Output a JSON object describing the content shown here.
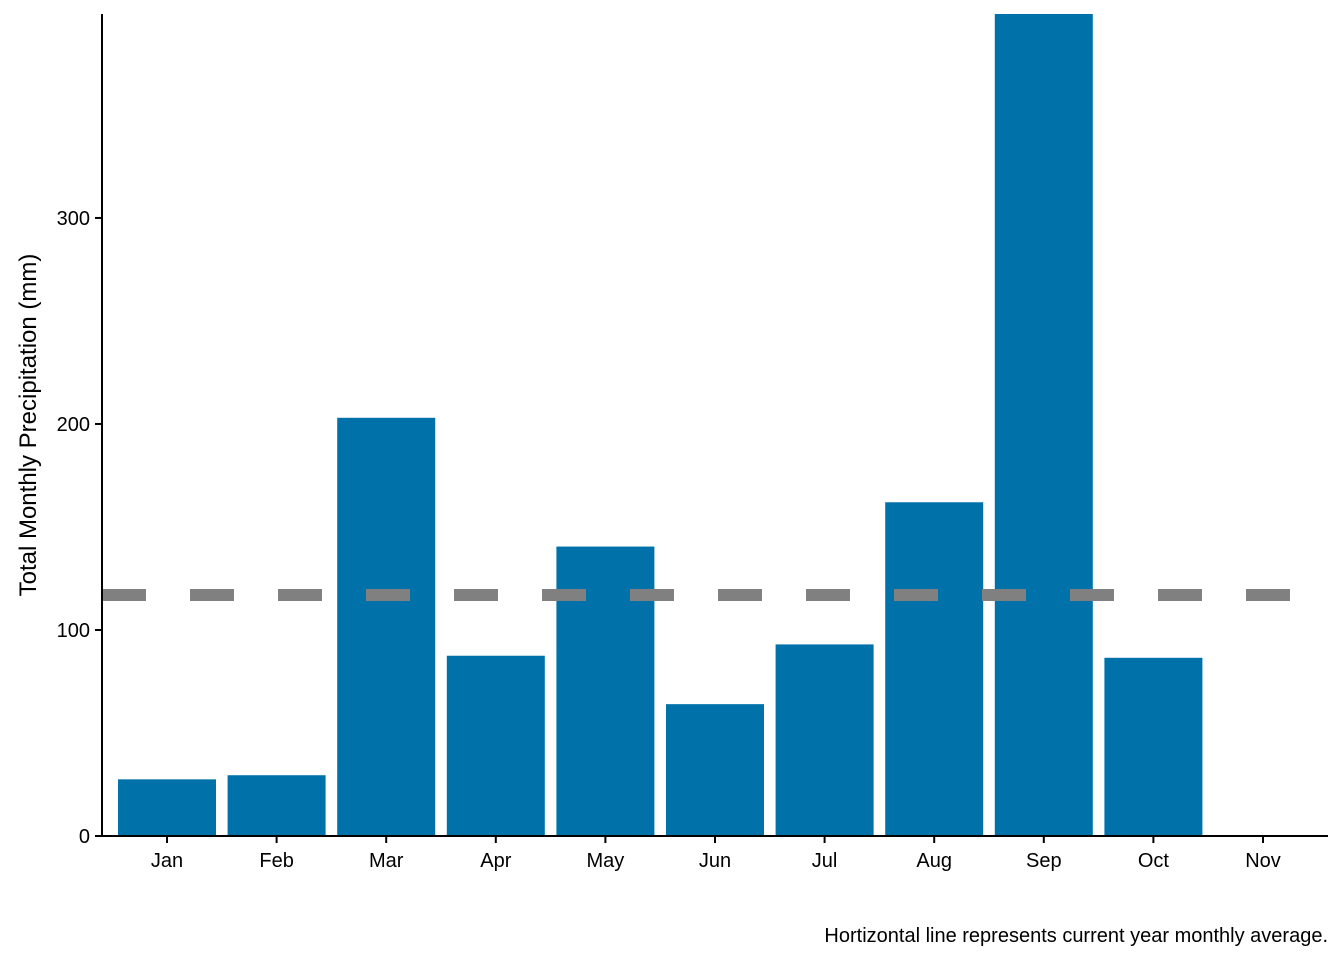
{
  "chart_data": {
    "type": "bar",
    "title": "",
    "xlabel": "",
    "ylabel": "Total Monthly Precipitation (mm)",
    "caption": "Hortizontal line represents current year monthly average.",
    "categories": [
      "Jan",
      "Feb",
      "Mar",
      "Apr",
      "May",
      "Jun",
      "Jul",
      "Aug",
      "Sep",
      "Oct",
      "Nov"
    ],
    "values": [
      27.5,
      29.5,
      203,
      87.5,
      140.5,
      64,
      93,
      162,
      399,
      86.5,
      0
    ],
    "reference_line": {
      "value": 117,
      "style": "dashed",
      "color": "#808080"
    },
    "ylim": [
      0,
      399
    ],
    "yticks": [
      0,
      100,
      200,
      300
    ],
    "grid": false,
    "bar_color": "#0072A9"
  }
}
